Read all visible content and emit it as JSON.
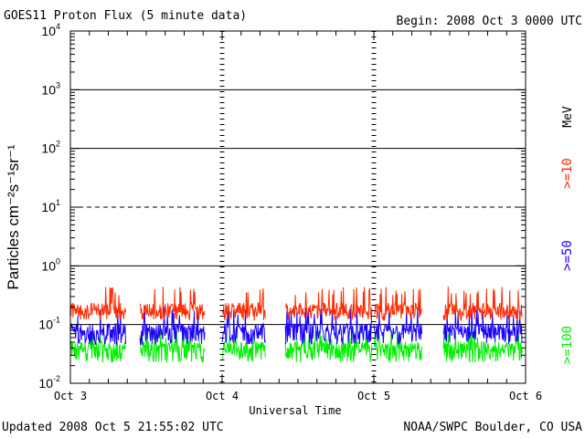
{
  "header": {
    "title": "GOES11 Proton Flux (5 minute data)",
    "begin": "Begin: 2008 Oct 3 0000 UTC"
  },
  "footer": {
    "updated": "Updated 2008 Oct  5 21:55:02 UTC",
    "credit": "NOAA/SWPC Boulder, CO USA"
  },
  "chart_data": {
    "type": "line",
    "ylabel": "Particles cm⁻²s⁻¹sr⁻¹",
    "xlabel": "Universal Time",
    "yscale": "log",
    "ylim": [
      0.01,
      10000
    ],
    "xlim": [
      0,
      72
    ],
    "x_unit": "hours since 2008 Oct 3 0000 UTC",
    "x_ticks": [
      {
        "x": 0,
        "label": "Oct 3"
      },
      {
        "x": 24,
        "label": "Oct 4"
      },
      {
        "x": 48,
        "label": "Oct 5"
      },
      {
        "x": 72,
        "label": "Oct 6"
      }
    ],
    "y_ticks": [
      {
        "base": "10",
        "exp": "-2",
        "value": 0.01
      },
      {
        "base": "10",
        "exp": "-1",
        "value": 0.1
      },
      {
        "base": "10",
        "exp": "0",
        "value": 1
      },
      {
        "base": "10",
        "exp": "1",
        "value": 10
      },
      {
        "base": "10",
        "exp": "2",
        "value": 100
      },
      {
        "base": "10",
        "exp": "3",
        "value": 1000
      },
      {
        "base": "10",
        "exp": "4",
        "value": 10000
      }
    ],
    "reference_lines": [
      {
        "value": 0.1,
        "style": "solid"
      },
      {
        "value": 1,
        "style": "solid"
      },
      {
        "value": 10,
        "style": "dashed"
      },
      {
        "value": 100,
        "style": "solid"
      },
      {
        "value": 1000,
        "style": "solid"
      }
    ],
    "data_segments_hours": [
      [
        0,
        8.8
      ],
      [
        11,
        21.3
      ],
      [
        24,
        30.9
      ],
      [
        34,
        47.7
      ],
      [
        48,
        55.6
      ],
      [
        59,
        71.5
      ]
    ],
    "legend": {
      "unit": "MeV",
      "placement": "right"
    },
    "series": [
      {
        "name": ">=10",
        "color": "#ff2a00",
        "typical": 0.18,
        "low": 0.13,
        "high": 0.45
      },
      {
        "name": ">=50",
        "color": "#1a00ff",
        "typical": 0.08,
        "low": 0.05,
        "high": 0.2
      },
      {
        "name": ">=100",
        "color": "#00ee00",
        "typical": 0.04,
        "low": 0.025,
        "high": 0.08
      }
    ]
  }
}
